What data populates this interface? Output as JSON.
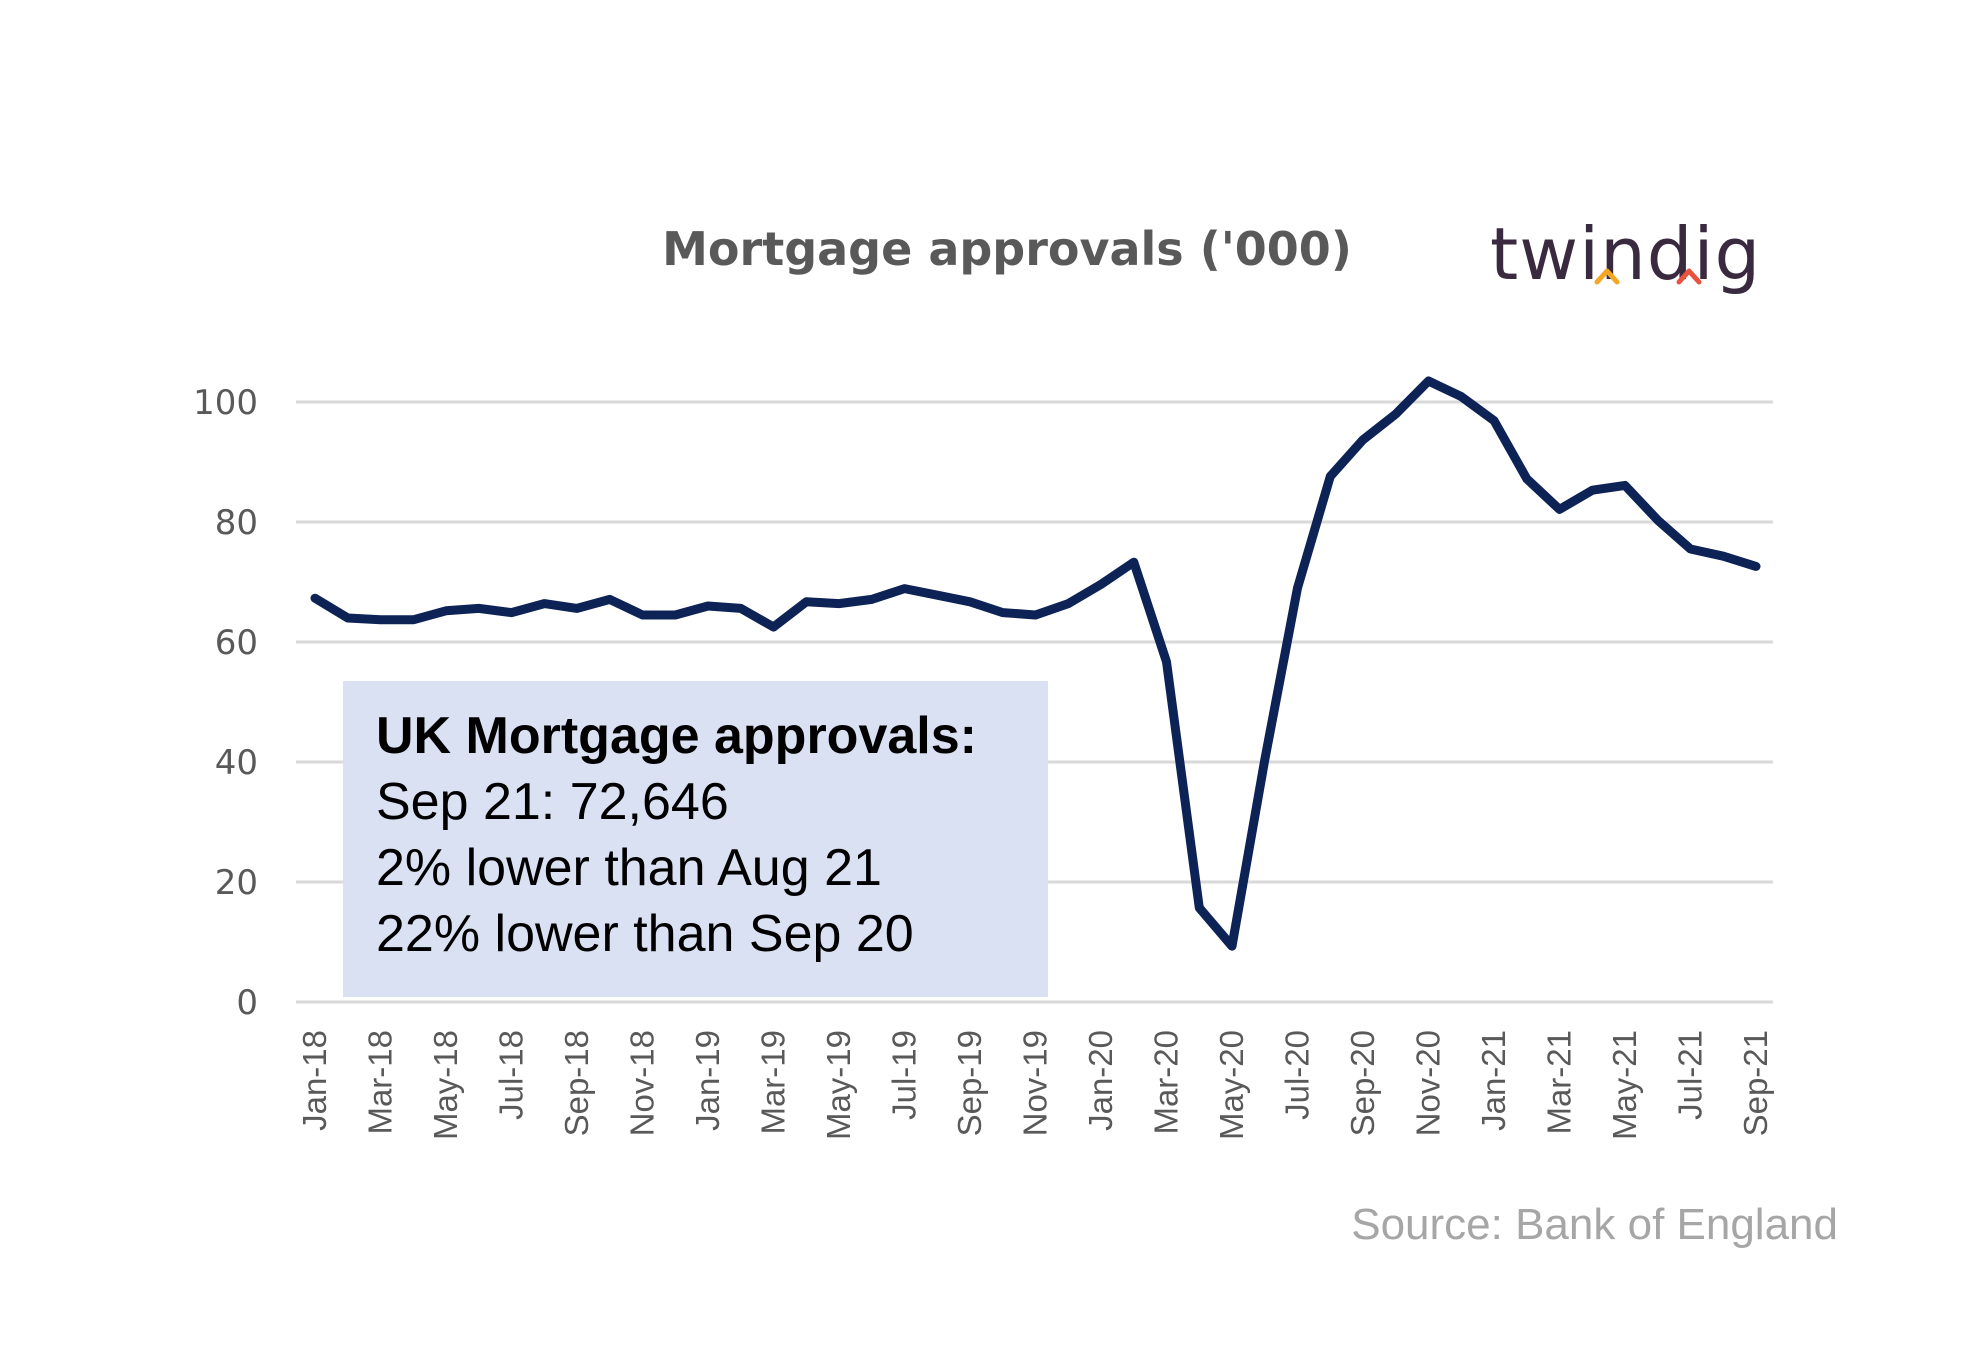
{
  "chart_data": {
    "type": "line",
    "title": "Mortgage approvals ('000)",
    "xlabel": "",
    "ylabel": "",
    "ylim": [
      0,
      100
    ],
    "yticks": [
      0,
      20,
      40,
      60,
      80,
      100
    ],
    "grid": true,
    "legend": "none",
    "line_color": "#0d2356",
    "grid_color": "#d9d9d9",
    "x": [
      "Jan-18",
      "Feb-18",
      "Mar-18",
      "Apr-18",
      "May-18",
      "Jun-18",
      "Jul-18",
      "Aug-18",
      "Sep-18",
      "Oct-18",
      "Nov-18",
      "Dec-18",
      "Jan-19",
      "Feb-19",
      "Mar-19",
      "Apr-19",
      "May-19",
      "Jun-19",
      "Jul-19",
      "Aug-19",
      "Sep-19",
      "Oct-19",
      "Nov-19",
      "Dec-19",
      "Jan-20",
      "Feb-20",
      "Mar-20",
      "Apr-20",
      "May-20",
      "Jun-20",
      "Jul-20",
      "Aug-20",
      "Sep-20",
      "Oct-20",
      "Nov-20",
      "Dec-20",
      "Jan-21",
      "Feb-21",
      "Mar-21",
      "Apr-21",
      "May-21",
      "Jun-21",
      "Jul-21",
      "Aug-21",
      "Sep-21"
    ],
    "xtick_labels": [
      "Jan-18",
      "Mar-18",
      "May-18",
      "Jul-18",
      "Sep-18",
      "Nov-18",
      "Jan-19",
      "Mar-19",
      "May-19",
      "Jul-19",
      "Sep-19",
      "Nov-19",
      "Jan-20",
      "Mar-20",
      "May-20",
      "Jul-20",
      "Sep-20",
      "Nov-20",
      "Jan-21",
      "Mar-21",
      "May-21",
      "Jul-21",
      "Sep-21"
    ],
    "series": [
      {
        "values": [
          67.3,
          64.0,
          63.7,
          63.7,
          65.2,
          65.6,
          64.9,
          66.4,
          65.6,
          67.1,
          64.5,
          64.5,
          66.0,
          65.6,
          62.5,
          66.7,
          66.4,
          67.1,
          68.9,
          67.8,
          66.7,
          64.9,
          64.5,
          66.4,
          69.6,
          73.3,
          56.7,
          15.7,
          9.3,
          40.4,
          69.0,
          87.6,
          93.7,
          98.0,
          103.5,
          100.9,
          96.9,
          87.2,
          82.1,
          85.3,
          86.1,
          80.3,
          75.5,
          74.3,
          72.6
        ]
      }
    ]
  },
  "annotation": {
    "heading": "UK Mortgage approvals:",
    "line1": "Sep 21: 72,646",
    "line2": "2% lower than Aug 21",
    "line3": "22% lower than Sep 20"
  },
  "brand": {
    "name": "twindig",
    "accent_colors": [
      "#f5a623",
      "#e8533f"
    ]
  },
  "source": "Source: Bank of England"
}
